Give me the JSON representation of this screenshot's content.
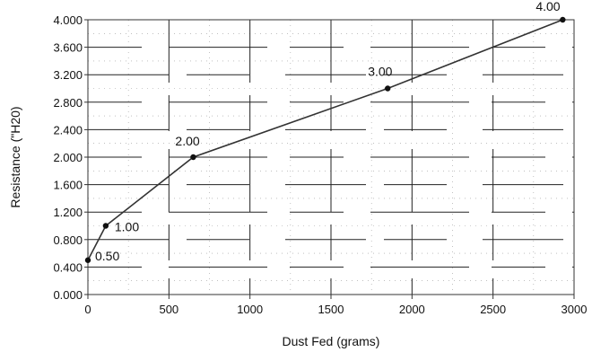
{
  "chart_data": {
    "type": "line",
    "xlabel": "Dust Fed (grams)",
    "ylabel": "Resistance (\"H20)",
    "xlim": [
      0,
      3000
    ],
    "ylim": [
      0,
      4
    ],
    "x_ticks": [
      "0",
      "500",
      "1000",
      "1500",
      "2000",
      "2500",
      "3000"
    ],
    "y_ticks": [
      "0.000",
      "0.400",
      "0.800",
      "1.200",
      "1.600",
      "2.000",
      "2.400",
      "2.800",
      "3.200",
      "3.600",
      "4.000"
    ],
    "grid": true,
    "series": [
      {
        "x": [
          0,
          110,
          650,
          1850,
          2930
        ],
        "y": [
          0.5,
          1.0,
          2.0,
          3.0,
          4.0
        ],
        "labels": [
          "0.50",
          "1.00",
          "2.00",
          "3.00",
          "4.00"
        ]
      }
    ],
    "colors": {
      "line": "#333333",
      "marker": "#111111",
      "grid": "#222222"
    }
  }
}
